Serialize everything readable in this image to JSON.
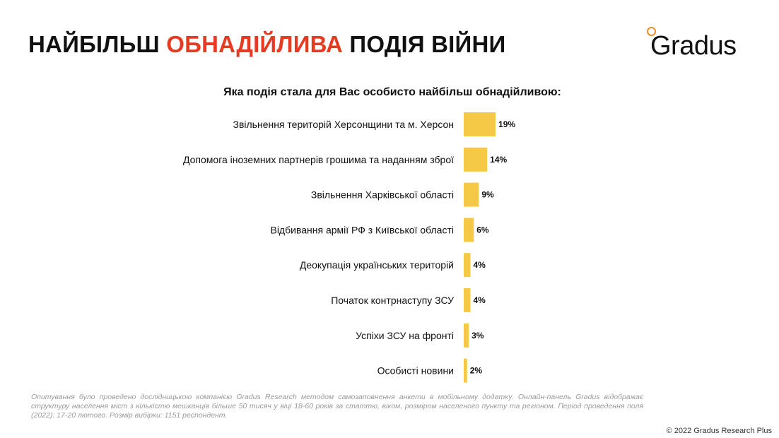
{
  "header": {
    "title_part1": "НАЙБІЛЬШ ",
    "title_accent": "ОБНАДІЙЛИВА",
    "title_part2": " ПОДІЯ ВІЙНИ",
    "accent_color": "#e63b22"
  },
  "logo": {
    "text": "Gradus",
    "ring_color": "#f28c28"
  },
  "chart_data": {
    "type": "bar",
    "orientation": "horizontal",
    "title": "Яка подія стала для Вас особисто найбільш обнадійливою:",
    "categories": [
      "Звільнення територій Херсонщини та м. Херсон",
      "Допомога іноземних партнерів грошима та наданням зброї",
      "Звільнення Харківської області",
      "Відбивання армії РФ з Київської області",
      "Деокупація українських територій",
      "Початок контрнаступу ЗСУ",
      "Успіхи ЗСУ на фронті",
      "Особисті новини"
    ],
    "values": [
      19,
      14,
      9,
      6,
      4,
      4,
      3,
      2
    ],
    "value_labels": [
      "19%",
      "14%",
      "9%",
      "6%",
      "4%",
      "4%",
      "3%",
      "2%"
    ],
    "bar_color": "#f5c945",
    "xlim": [
      0,
      100
    ],
    "grid": false,
    "legend": "none"
  },
  "footnote": "Опитування було проведено дослідницькою компанією Gradus Research методом самозаповнення анкети в мобільному додатку. Онлайн-панель Gradus відображає структуру населення міст з кількістю мешканців більше 50 тисяч у віці 18-60 років за статтю, віком, розміром населеного пункту та регіоном. Період проведення поля (2022): 17-20 лютого. Розмір вибірки: 1151 респондент.",
  "copyright": "© 2022 Gradus Research Plus"
}
